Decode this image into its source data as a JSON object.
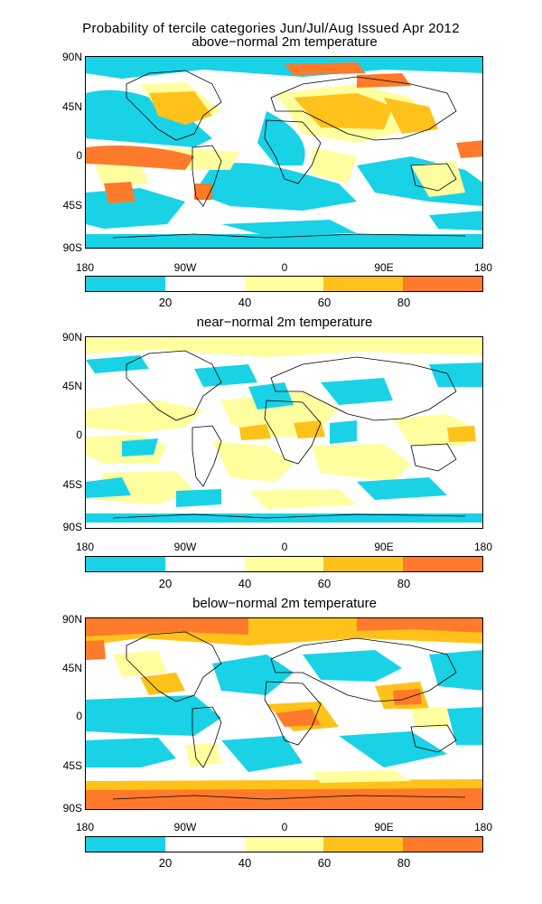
{
  "title_line1": "Probability of tercile categories Jun/Jul/Aug Issued Apr 2012",
  "panels": [
    {
      "subtitle": "above−normal 2m temperature"
    },
    {
      "subtitle": "near−normal 2m temperature"
    },
    {
      "subtitle": "below−normal 2m temperature"
    }
  ],
  "lat_ticks": [
    "90N",
    "45N",
    "0",
    "45S",
    "90S"
  ],
  "lon_ticks": [
    "180",
    "90W",
    "0",
    "90E",
    "180"
  ],
  "colorbar": {
    "colors": [
      "#19d2e6",
      "#ffffff",
      "#ffff9f",
      "#ffc21a",
      "#ff7a2a"
    ],
    "labels": [
      "20",
      "40",
      "60",
      "80"
    ]
  },
  "colors": {
    "low": "#19d2e6",
    "mid_low": "#ffffff",
    "mid": "#ffff9f",
    "high": "#ffc21a",
    "very_high": "#ff7a2a"
  }
}
